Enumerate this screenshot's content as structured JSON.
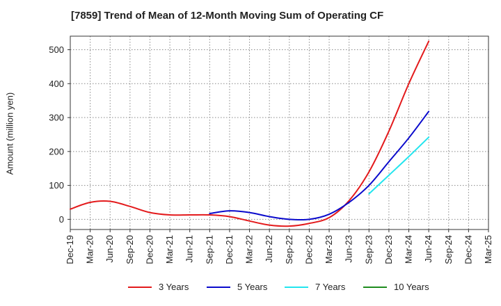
{
  "chart_data": {
    "type": "line",
    "title": "[7859]  Trend of Mean of 12-Month Moving Sum of Operating CF",
    "xlabel": "",
    "ylabel": "Amount (million yen)",
    "ylim": [
      -30,
      540
    ],
    "yticks": [
      0,
      100,
      200,
      300,
      400,
      500
    ],
    "grid": true,
    "legend_position": "bottom",
    "x": [
      "Dec-19",
      "Mar-20",
      "Jun-20",
      "Sep-20",
      "Dec-20",
      "Mar-21",
      "Jun-21",
      "Sep-21",
      "Dec-21",
      "Mar-22",
      "Jun-22",
      "Sep-22",
      "Dec-22",
      "Mar-23",
      "Jun-23",
      "Sep-23",
      "Dec-23",
      "Mar-24",
      "Jun-24",
      "Sep-24",
      "Dec-24",
      "Mar-25"
    ],
    "series": [
      {
        "name": "3 Years",
        "color": "#e31a1c",
        "values": [
          30,
          50,
          53,
          38,
          20,
          13,
          13,
          13,
          8,
          -5,
          -17,
          -20,
          -12,
          5,
          55,
          140,
          260,
          400,
          525,
          null,
          null,
          null
        ]
      },
      {
        "name": "5 Years",
        "color": "#0a0acc",
        "values": [
          null,
          null,
          null,
          null,
          null,
          null,
          null,
          17,
          25,
          20,
          8,
          0,
          0,
          15,
          50,
          100,
          170,
          240,
          318,
          null,
          null,
          null
        ]
      },
      {
        "name": "7 Years",
        "color": "#22e5ee",
        "values": [
          null,
          null,
          null,
          null,
          null,
          null,
          null,
          null,
          null,
          null,
          null,
          null,
          null,
          null,
          null,
          75,
          130,
          185,
          242,
          null,
          null,
          null
        ]
      },
      {
        "name": "10 Years",
        "color": "#1e8c1e",
        "values": [
          null,
          null,
          null,
          null,
          null,
          null,
          null,
          null,
          null,
          null,
          null,
          null,
          null,
          null,
          null,
          null,
          null,
          null,
          null,
          null,
          null,
          null
        ]
      }
    ]
  }
}
